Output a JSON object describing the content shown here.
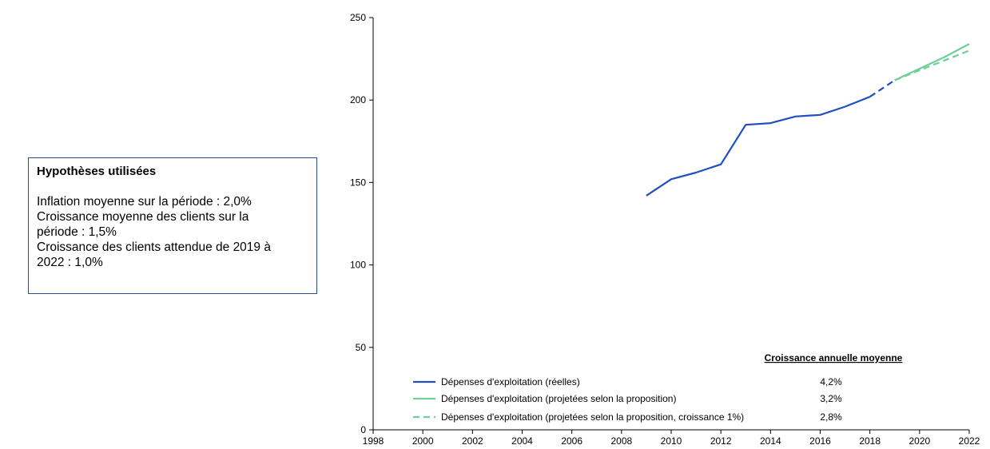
{
  "assumptions": {
    "title": "Hypothèses utilisées",
    "lines": [
      "Inflation moyenne sur la période : 2,0%",
      "Croissance moyenne des clients sur la",
      "période : 1,5%",
      "Croissance des clients attendue de 2019 à",
      "2022 : 1,0%"
    ]
  },
  "growth_table": {
    "title": "Croissance annuelle moyenne",
    "values": [
      "4,2%",
      "3,2%",
      "2,8%"
    ]
  },
  "colors": {
    "actual": "#1f4fc0",
    "projected": "#6fcf97",
    "axis": "#000000"
  },
  "chart_data": {
    "type": "line",
    "xlim": [
      1998,
      2022
    ],
    "ylim": [
      0,
      250
    ],
    "x_ticks": [
      "1998",
      "2000",
      "2002",
      "2004",
      "2006",
      "2008",
      "2010",
      "2012",
      "2014",
      "2016",
      "2018",
      "2020",
      "2022"
    ],
    "y_ticks": [
      "0",
      "50",
      "100",
      "150",
      "200",
      "250"
    ],
    "grid": false,
    "legend_position": "bottom-right",
    "series": [
      {
        "name": "Dépenses d'exploitation (réelles)",
        "color": "#1f4fc0",
        "dash": "solid",
        "x": [
          2009,
          2010,
          2011,
          2012,
          2013,
          2014,
          2015,
          2016,
          2017,
          2018
        ],
        "y": [
          142,
          152,
          156,
          161,
          185,
          186,
          190,
          191,
          196,
          202
        ]
      },
      {
        "name": "",
        "color": "#1f4fc0",
        "dash": "dashed",
        "legend": false,
        "x": [
          2018,
          2019
        ],
        "y": [
          202,
          212
        ]
      },
      {
        "name": "Dépenses d'exploitation (projetées selon la proposition)",
        "color": "#6fcf97",
        "dash": "solid",
        "x": [
          2019,
          2020,
          2021,
          2022
        ],
        "y": [
          212,
          219,
          226,
          234
        ]
      },
      {
        "name": "Dépenses d'exploitation (projetées selon la proposition, croissance 1%)",
        "color": "#6fcf97",
        "dash": "dashed",
        "x": [
          2019,
          2020,
          2021,
          2022
        ],
        "y": [
          212,
          218,
          224,
          230
        ]
      }
    ]
  }
}
